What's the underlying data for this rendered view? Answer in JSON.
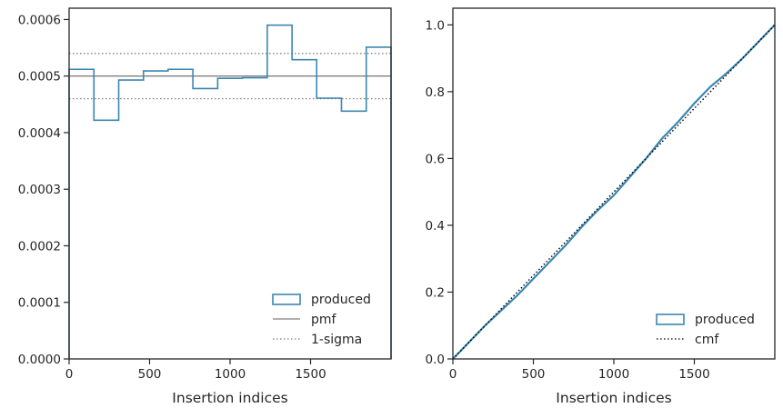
{
  "chart_data": [
    {
      "type": "histogram-step",
      "xlabel": "Insertion indices",
      "ylabel": "",
      "xlim": [
        0,
        2000
      ],
      "ylim": [
        0,
        0.00062
      ],
      "xticks": [
        0,
        500,
        1000,
        1500
      ],
      "xtick_labels": [
        "0",
        "500",
        "1000",
        "1500"
      ],
      "yticks": [
        0,
        0.0001,
        0.0002,
        0.0003,
        0.0004,
        0.0005,
        0.0006
      ],
      "ytick_labels": [
        "0.0000",
        "0.0001",
        "0.0002",
        "0.0003",
        "0.0004",
        "0.0005",
        "0.0006"
      ],
      "bin_edges": [
        0,
        154,
        308,
        462,
        615,
        769,
        923,
        1077,
        1231,
        1385,
        1538,
        1692,
        1846,
        2000
      ],
      "bin_values": [
        0.000512,
        0.000422,
        0.000493,
        0.000509,
        0.000512,
        0.000478,
        0.000496,
        0.000497,
        0.00059,
        0.000529,
        0.000461,
        0.000438,
        0.000551
      ],
      "pmf": 0.0005,
      "sigma_lower": 0.00046,
      "sigma_upper": 0.00054,
      "legend": {
        "position": "lower-right",
        "entries": [
          {
            "label": "produced",
            "style": "box",
            "color": "#3a87b2"
          },
          {
            "label": "pmf",
            "style": "solid",
            "color": "#808080"
          },
          {
            "label": "1-sigma",
            "style": "dotted",
            "color": "#808080"
          }
        ]
      }
    },
    {
      "type": "line",
      "xlabel": "Insertion indices",
      "ylabel": "",
      "xlim": [
        0,
        2000
      ],
      "ylim": [
        0,
        1.05
      ],
      "xticks": [
        0,
        500,
        1000,
        1500
      ],
      "xtick_labels": [
        "0",
        "500",
        "1000",
        "1500"
      ],
      "yticks": [
        0,
        0.2,
        0.4,
        0.6,
        0.8,
        1.0
      ],
      "ytick_labels": [
        "0.0",
        "0.2",
        "0.4",
        "0.6",
        "0.8",
        "1.0"
      ],
      "series": [
        {
          "name": "produced",
          "color": "#3a87b2",
          "x": [
            0,
            100,
            200,
            300,
            400,
            500,
            600,
            700,
            800,
            900,
            1000,
            1100,
            1200,
            1300,
            1400,
            1500,
            1600,
            1700,
            1800,
            1900,
            2000
          ],
          "y": [
            0,
            0.05,
            0.1,
            0.145,
            0.19,
            0.24,
            0.29,
            0.34,
            0.395,
            0.445,
            0.49,
            0.545,
            0.6,
            0.66,
            0.71,
            0.765,
            0.815,
            0.855,
            0.9,
            0.95,
            1.0
          ]
        },
        {
          "name": "cmf",
          "color": "#000000",
          "x": [
            0,
            2000
          ],
          "y": [
            0,
            1.0
          ]
        }
      ],
      "legend": {
        "position": "lower-right",
        "entries": [
          {
            "label": "produced",
            "style": "box",
            "color": "#3a87b2"
          },
          {
            "label": "cmf",
            "style": "dotted",
            "color": "#000000"
          }
        ]
      }
    }
  ]
}
